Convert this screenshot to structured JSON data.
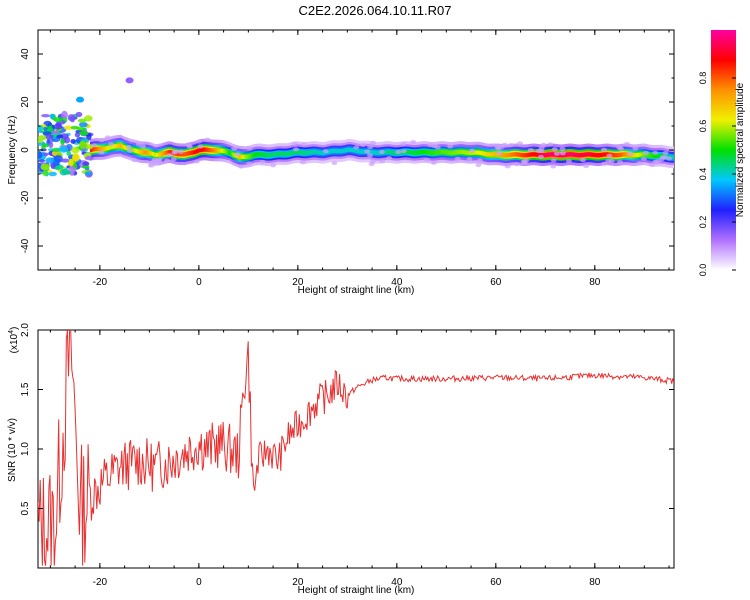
{
  "title": "C2E2.2026.064.10.11.R07",
  "chart_data": [
    {
      "type": "heatmap",
      "xlabel": "Height of straight line (km)",
      "ylabel": "Frequency (Hz)",
      "xlim": [
        -32.5,
        96
      ],
      "ylim": [
        -50,
        50
      ],
      "xticks": [
        "-20",
        "0",
        "20",
        "40",
        "60",
        "80"
      ],
      "yticks": [
        "-40",
        "-20",
        "0",
        "20",
        "40"
      ],
      "colorbar": {
        "label": "Normalized spectral amplitude",
        "range": [
          0,
          1
        ],
        "ticks": [
          "0.0",
          "0.2",
          "0.4",
          "0.6",
          "0.8"
        ],
        "colors": [
          "#ffffff",
          "#b070ff",
          "#2020ff",
          "#00c8ff",
          "#00e000",
          "#f0f000",
          "#ff9000",
          "#ff0000",
          "#ff00a0"
        ]
      },
      "ridge": {
        "x": [
          -22,
          -18,
          -16,
          -14,
          -11,
          -9,
          -6,
          -3,
          0,
          3,
          6,
          8,
          9,
          11,
          15,
          20,
          25,
          30,
          35,
          40,
          45,
          50,
          55,
          60,
          65,
          70,
          75,
          80,
          85,
          90,
          96
        ],
        "frequency": [
          0,
          1,
          2,
          0,
          -1,
          -2,
          -1,
          -2,
          0,
          0,
          -1,
          -3,
          -3,
          -2,
          -2,
          -1,
          -1,
          0,
          -1,
          -1,
          -1,
          -1,
          -1,
          -2,
          -2,
          -2,
          -2,
          -2,
          -2,
          -2,
          -3
        ],
        "amplitude": [
          0.85,
          0.6,
          0.7,
          0.55,
          0.75,
          0.6,
          0.85,
          0.8,
          0.9,
          0.75,
          0.5,
          0.7,
          0.6,
          0.5,
          0.45,
          0.45,
          0.4,
          0.4,
          0.4,
          0.45,
          0.5,
          0.55,
          0.6,
          0.7,
          0.82,
          0.95,
          0.95,
          0.9,
          0.8,
          0.55,
          0.4
        ]
      },
      "scatter_region": {
        "x": [
          -32.5,
          -22
        ],
        "frequency": [
          -10,
          15
        ],
        "amplitude": 0.3
      },
      "outliers": [
        {
          "x": -24,
          "frequency": 21,
          "amplitude": 0.35
        },
        {
          "x": -14,
          "frequency": 29,
          "amplitude": 0.15
        }
      ]
    },
    {
      "type": "line",
      "xlabel": "Height of straight line (km)",
      "ylabel": "SNR (10 * v/v)",
      "yunit": "(x10",
      "yunit_exp": "4",
      "yunit_close": ")",
      "xlim": [
        -32.5,
        96
      ],
      "ylim": [
        0,
        2.0
      ],
      "xticks": [
        "-20",
        "0",
        "20",
        "40",
        "60",
        "80"
      ],
      "yticks": [
        "0.5",
        "1.0",
        "1.5",
        "2.0"
      ],
      "color": "#e83030",
      "series": [
        {
          "name": "SNR",
          "x": [
            -32.5,
            -29,
            -26.5,
            -26,
            -24,
            -20,
            -16,
            -12,
            -9,
            -6,
            -2,
            0,
            2,
            4,
            6,
            8,
            9.5,
            10,
            11,
            12,
            14,
            16,
            18,
            20,
            22,
            24,
            26,
            28,
            30,
            32,
            35,
            38,
            40,
            50,
            60,
            70,
            80,
            90,
            96
          ],
          "y": [
            0.3,
            0.4,
            1.6,
            2.0,
            0.5,
            0.7,
            0.85,
            0.9,
            0.85,
            0.9,
            1.0,
            1.05,
            1.0,
            1.05,
            1.0,
            0.95,
            1.7,
            1.8,
            0.6,
            0.9,
            1.0,
            0.9,
            1.1,
            1.2,
            1.3,
            1.4,
            1.45,
            1.55,
            1.45,
            1.52,
            1.58,
            1.6,
            1.59,
            1.59,
            1.6,
            1.59,
            1.62,
            1.6,
            1.57
          ]
        }
      ]
    }
  ]
}
